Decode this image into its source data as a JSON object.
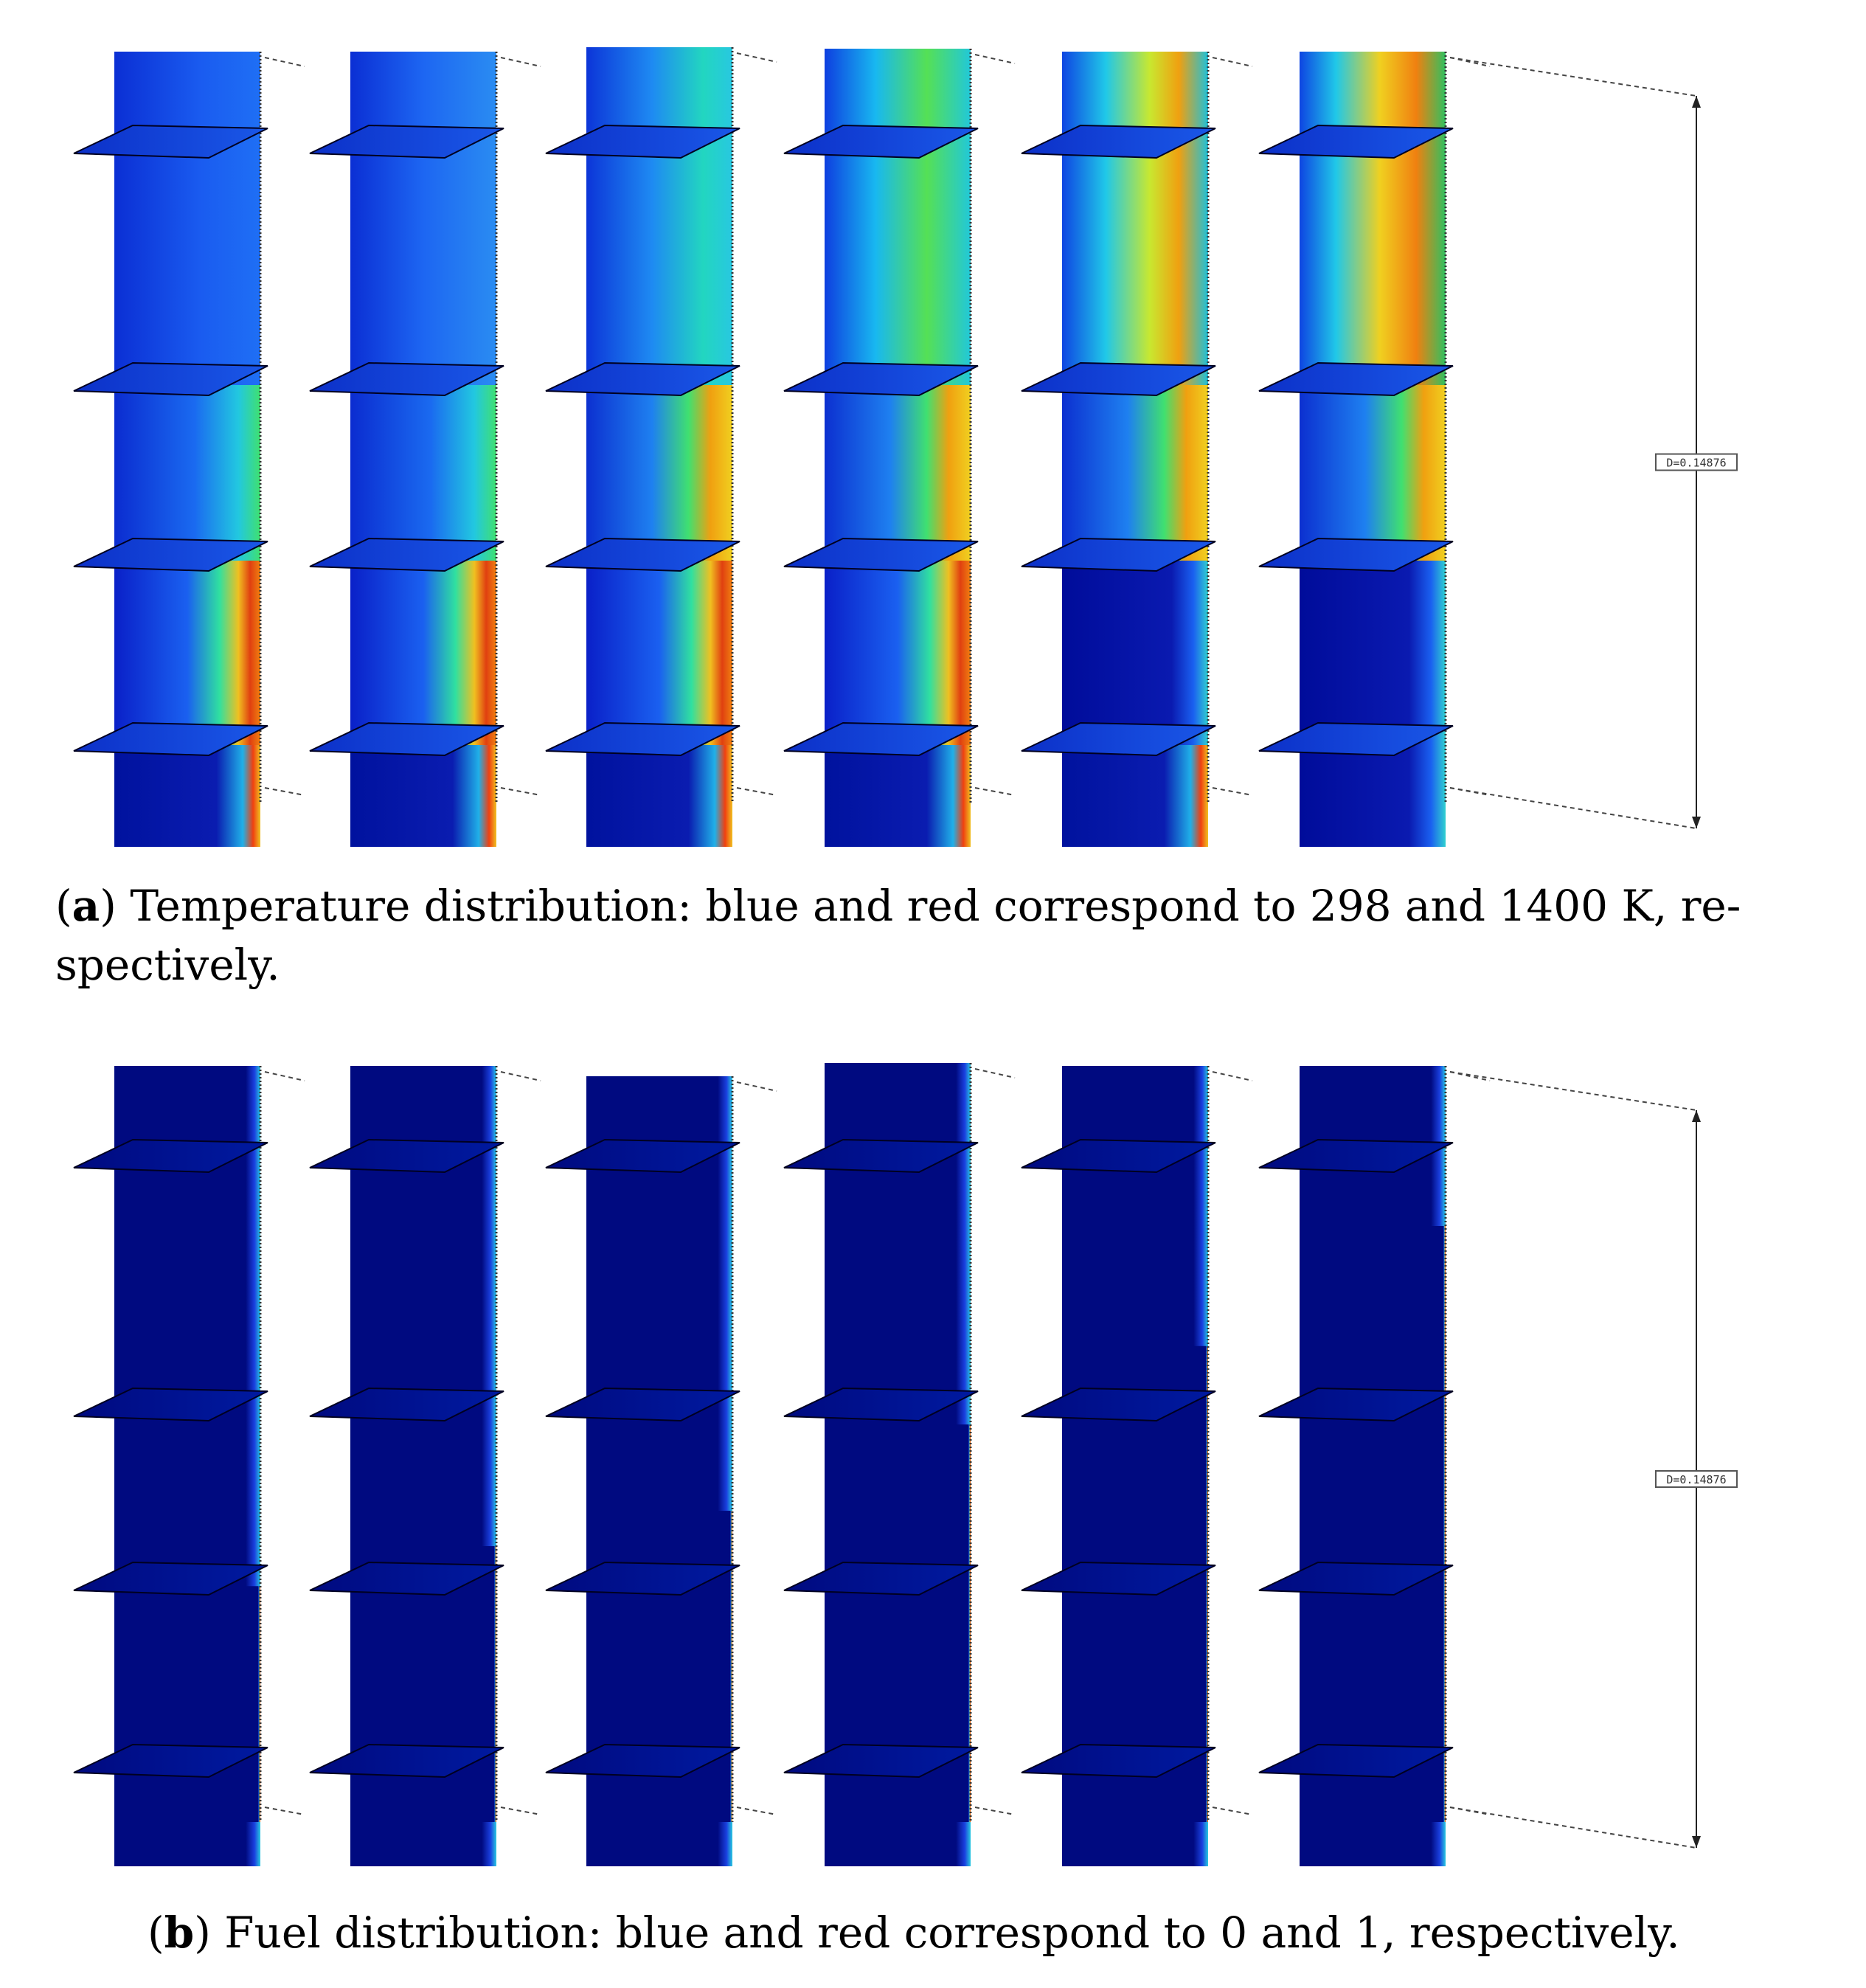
{
  "panels": [
    {
      "id": "a",
      "label": "a",
      "caption_text": "Temperature distribution: blue and red correspond to 298 and 1400 K, respectively.",
      "caption_line1": "Temperature distribution: blue and red correspond to 298 and 1400 K, re-",
      "caption_line2": "spectively.",
      "colormap": {
        "low_label": "298",
        "high_label": "1400 K",
        "low_color": "#0000a0",
        "high_color": "#c00000"
      },
      "dimension_label": "D=0.14876",
      "snapshots": [
        {
          "index": 1,
          "hot_level": 0.55
        },
        {
          "index": 2,
          "hot_level": 0.6
        },
        {
          "index": 3,
          "hot_level": 0.7
        },
        {
          "index": 4,
          "hot_level": 0.8
        },
        {
          "index": 5,
          "hot_level": 0.9
        },
        {
          "index": 6,
          "hot_level": 0.95
        }
      ]
    },
    {
      "id": "b",
      "label": "b",
      "caption_text": "Fuel distribution: blue and red correspond to 0 and 1, respectively.",
      "colormap": {
        "low_label": "0",
        "high_label": "1",
        "low_color": "#000a80",
        "high_color": "#c00000"
      },
      "dimension_label": "D=0.14876",
      "snapshots": [
        {
          "index": 1,
          "fuel_level": 0.35
        },
        {
          "index": 2,
          "fuel_level": 0.4
        },
        {
          "index": 3,
          "fuel_level": 0.45
        },
        {
          "index": 4,
          "fuel_level": 0.55
        },
        {
          "index": 5,
          "fuel_level": 0.65
        },
        {
          "index": 6,
          "fuel_level": 0.8
        }
      ]
    }
  ]
}
